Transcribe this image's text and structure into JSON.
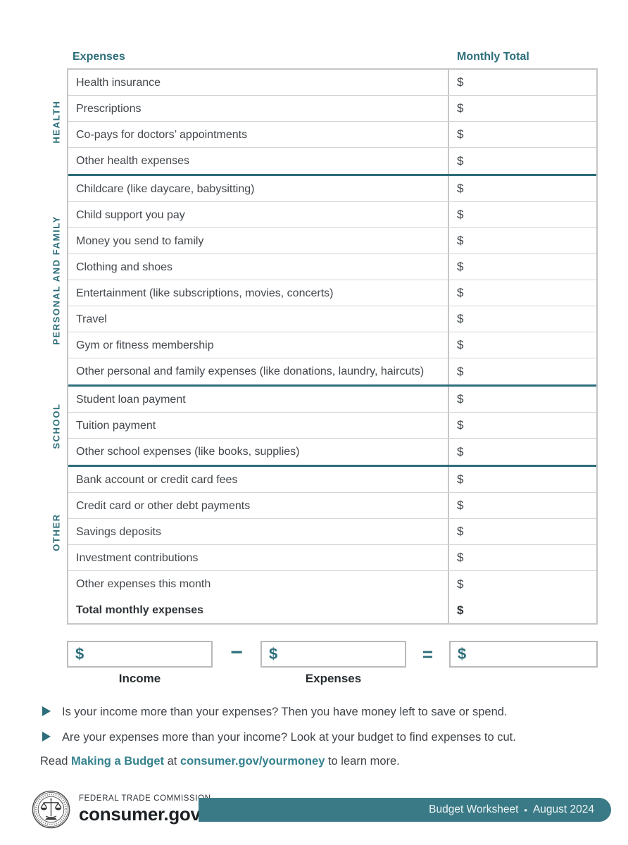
{
  "colors": {
    "teal_text": "#2c6e7a",
    "teal_link": "#35818f",
    "teal_bar": "#3a7a86",
    "body_text": "#42474c",
    "table_border": "#c6c6c6"
  },
  "table": {
    "headers": {
      "expenses": "Expenses",
      "monthly_total": "Monthly Total"
    },
    "currency_symbol": "$",
    "sections": [
      {
        "label": "HEALTH",
        "rows": [
          "Health insurance",
          "Prescriptions",
          "Co-pays for doctors’ appointments",
          "Other health expenses"
        ]
      },
      {
        "label": "PERSONAL AND FAMILY",
        "rows": [
          "Childcare (like daycare, babysitting)",
          "Child support you pay",
          "Money you send to family",
          "Clothing and shoes",
          "Entertainment (like subscriptions, movies, concerts)",
          "Travel",
          "Gym or fitness membership",
          "Other personal and family expenses (like donations, laundry, haircuts)"
        ]
      },
      {
        "label": "SCHOOL",
        "rows": [
          "Student loan payment",
          "Tuition payment",
          "Other school expenses (like books, supplies)"
        ]
      },
      {
        "label": "OTHER",
        "rows": [
          "Bank account or credit card fees",
          "Credit card or other debt payments",
          "Savings deposits",
          "Investment contributions",
          "Other expenses this month"
        ]
      }
    ],
    "total_row": "Total monthly expenses"
  },
  "equation": {
    "dollar": "$",
    "minus": "−",
    "equals": "=",
    "income_label": "Income",
    "expenses_label": "Expenses"
  },
  "notes": [
    "Is your income more than your expenses? Then you have money left to save or spend.",
    "Are your expenses more than your income? Look at your budget to find expenses to cut."
  ],
  "read_more": {
    "prefix": "Read ",
    "link1": "Making a Budget",
    "middle": " at ",
    "link2": "consumer.gov/yourmoney",
    "suffix": " to learn more."
  },
  "footer": {
    "agency": "FEDERAL TRADE COMMISSION",
    "brand": "consumer.gov",
    "bar_title": "Budget Worksheet",
    "bar_separator": "•",
    "bar_date": "August 2024"
  }
}
